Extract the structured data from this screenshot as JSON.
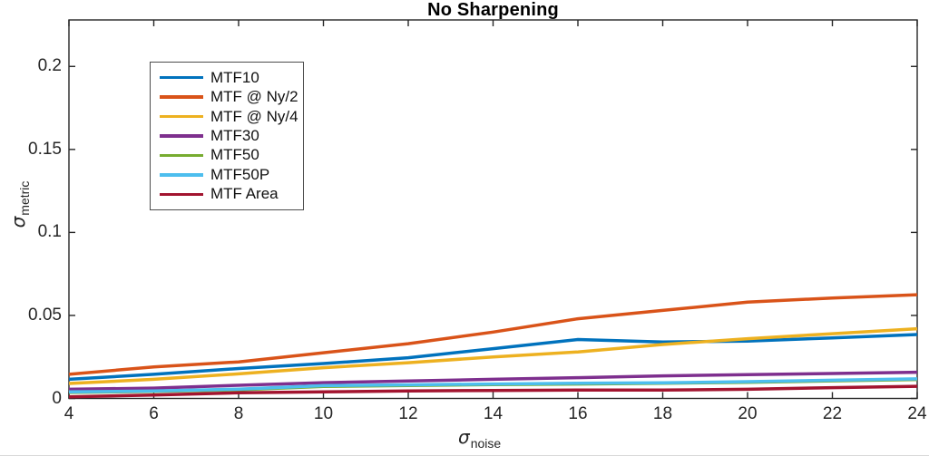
{
  "figure": {
    "background": "#ffffff",
    "axis_color": "#262626",
    "xlabel": {
      "symbol": "σ",
      "subscript": "noise"
    },
    "ylabel": {
      "symbol": "σ",
      "subscript": "metric"
    }
  },
  "chart_data": {
    "type": "line",
    "title": "No Sharpening",
    "xlabel": "sigma_noise",
    "ylabel": "sigma_metric",
    "xlim": [
      4,
      24
    ],
    "ylim": [
      0,
      0.228
    ],
    "grid": false,
    "legend_position": "upper-left-inside",
    "x_ticks": [
      4,
      6,
      8,
      10,
      12,
      14,
      16,
      18,
      20,
      22,
      24
    ],
    "y_ticks": [
      0,
      0.05,
      0.1,
      0.15,
      0.2
    ],
    "y_tick_labels": [
      "0",
      "0.05",
      "0.1",
      "0.15",
      "0.2"
    ],
    "x": [
      4,
      6,
      8,
      10,
      12,
      14,
      16,
      18,
      20,
      22,
      24
    ],
    "series": [
      {
        "name": "MTF10",
        "color": "#0072BD",
        "values": [
          0.0115,
          0.0145,
          0.018,
          0.021,
          0.0245,
          0.03,
          0.0355,
          0.034,
          0.0345,
          0.0365,
          0.0385
        ]
      },
      {
        "name": "MTF @ Ny/2",
        "color": "#D95319",
        "values": [
          0.0145,
          0.019,
          0.022,
          0.0275,
          0.033,
          0.04,
          0.048,
          0.053,
          0.058,
          0.0605,
          0.0625
        ]
      },
      {
        "name": "MTF @ Ny/4",
        "color": "#EDB120",
        "values": [
          0.009,
          0.0115,
          0.0148,
          0.0185,
          0.0215,
          0.025,
          0.028,
          0.0325,
          0.036,
          0.039,
          0.042
        ]
      },
      {
        "name": "MTF30",
        "color": "#7E2F8E",
        "values": [
          0.0055,
          0.0062,
          0.0079,
          0.0095,
          0.0105,
          0.0115,
          0.0125,
          0.0136,
          0.0143,
          0.015,
          0.0158
        ]
      },
      {
        "name": "MTF50",
        "color": "#77AC30",
        "values": [
          0.0036,
          0.0042,
          0.0052,
          0.0072,
          0.0078,
          0.0083,
          0.0087,
          0.0091,
          0.0097,
          0.0106,
          0.0114
        ]
      },
      {
        "name": "MTF50P",
        "color": "#4DBEEE",
        "values": [
          0.004,
          0.0045,
          0.0056,
          0.0077,
          0.0082,
          0.0087,
          0.0091,
          0.0094,
          0.0101,
          0.011,
          0.0118
        ]
      },
      {
        "name": "MTF Area",
        "color": "#A2142F",
        "values": [
          0.001,
          0.002,
          0.0034,
          0.004,
          0.0045,
          0.0048,
          0.005,
          0.005,
          0.0055,
          0.0065,
          0.0073
        ]
      }
    ]
  }
}
